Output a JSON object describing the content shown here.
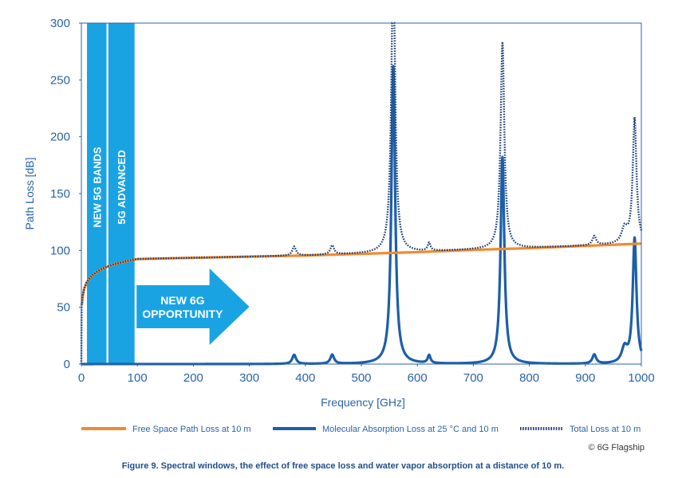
{
  "chart_data": {
    "type": "line",
    "xlabel": "Frequency [GHz]",
    "ylabel": "Path Loss [dB]",
    "xlim": [
      0,
      1000
    ],
    "ylim": [
      0,
      300
    ],
    "x_ticks": [
      0,
      100,
      200,
      300,
      400,
      500,
      600,
      700,
      800,
      900,
      1000
    ],
    "y_ticks": [
      0,
      50,
      100,
      150,
      200,
      250,
      300
    ],
    "grid": false,
    "legend_position": "bottom",
    "band_annotations": [
      {
        "label": "NEW 5G BANDS",
        "x_range": [
          10,
          45
        ]
      },
      {
        "label": "5G ADVANCED",
        "x_range": [
          48,
          95
        ]
      }
    ],
    "arrow_annotation": {
      "lines": [
        "NEW 6G",
        "OPPORTUNITY"
      ],
      "x_range": [
        100,
        300
      ]
    },
    "series": [
      {
        "name": "Free Space Path Loss at 10 m",
        "color": "#f28a2e",
        "style": "solid",
        "x": [
          1,
          2,
          5,
          10,
          20,
          30,
          40,
          50,
          60,
          80,
          100,
          150,
          200,
          300,
          400,
          500,
          600,
          700,
          800,
          900,
          1000
        ],
        "values": [
          52.4,
          58.4,
          66.4,
          72.4,
          78.4,
          82.0,
          84.5,
          86.4,
          88.0,
          90.5,
          92.4,
          93.0,
          93.5,
          94.5,
          95.5,
          97.0,
          98.5,
          100.5,
          102.0,
          104.0,
          106.0
        ]
      },
      {
        "name": "Molecular Absorption Loss at 25 °C and 10 m",
        "color": "#1c5fa8",
        "style": "solid",
        "peaks": [
          {
            "x": 380,
            "peak": 8
          },
          {
            "x": 448,
            "peak": 8
          },
          {
            "x": 557,
            "peak": 262
          },
          {
            "x": 621,
            "peak": 7
          },
          {
            "x": 752,
            "peak": 182
          },
          {
            "x": 916,
            "peak": 8
          },
          {
            "x": 970,
            "peak": 13
          },
          {
            "x": 988,
            "peak": 110
          }
        ]
      },
      {
        "name": "Total Loss at 10 m",
        "color": "#1e3f73",
        "style": "dotted",
        "note_values": [
          {
            "x": 557,
            "value": 300
          },
          {
            "x": 752,
            "value": 276
          },
          {
            "x": 988,
            "value": 236
          }
        ]
      }
    ]
  },
  "legend": [
    {
      "label": "Free Space Path Loss at 10 m",
      "color": "#f28a2e",
      "style": "solid"
    },
    {
      "label": "Molecular Absorption Loss at 25 °C and 10 m",
      "color": "#1c5fa8",
      "style": "solid"
    },
    {
      "label": "Total Loss at 10 m",
      "color": "#1e3f73",
      "style": "dotted"
    }
  ],
  "credit": "© 6G Flagship",
  "caption": "Figure 9. Spectral windows, the effect of free space loss and water vapor absorption at a distance of 10 m."
}
